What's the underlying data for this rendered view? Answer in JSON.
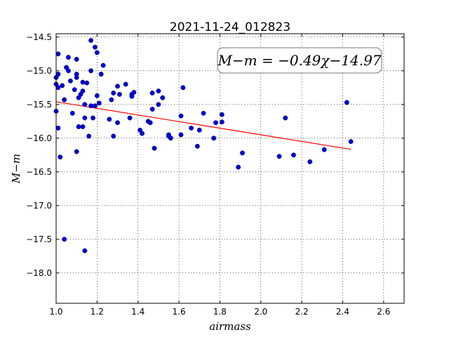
{
  "chart_data": {
    "type": "scatter",
    "title": "2021-11-24_012823",
    "xlabel": "airmass",
    "ylabel": "M−m",
    "xlim": [
      1.0,
      2.7
    ],
    "ylim": [
      -14.45,
      -18.45
    ],
    "y_inverted": true,
    "grid": true,
    "grid_style": "dotted",
    "x_ticks": [
      "1.0",
      "1.2",
      "1.4",
      "1.6",
      "1.8",
      "2.0",
      "2.2",
      "2.4",
      "2.6"
    ],
    "x_tick_values": [
      1.0,
      1.2,
      1.4,
      1.6,
      1.8,
      2.0,
      2.2,
      2.4,
      2.6
    ],
    "y_ticks": [
      "−14.5",
      "−15.0",
      "−15.5",
      "−16.0",
      "−16.5",
      "−17.0",
      "−17.5",
      "−18.0"
    ],
    "y_tick_values": [
      -14.5,
      -15.0,
      -15.5,
      -16.0,
      -16.5,
      -17.0,
      -17.5,
      -18.0
    ],
    "annotation": "M−m = −0.49χ−14.97",
    "point_color": "#0000cc",
    "fit_color": "#ff0000",
    "fit": {
      "slope": -0.49,
      "intercept": -14.97,
      "x_range": [
        1.0,
        2.44
      ]
    },
    "points": [
      [
        1.0,
        -15.1
      ],
      [
        1.0,
        -15.2
      ],
      [
        1.0,
        -15.6
      ],
      [
        1.01,
        -14.75
      ],
      [
        1.01,
        -15.05
      ],
      [
        1.01,
        -15.25
      ],
      [
        1.01,
        -15.85
      ],
      [
        1.02,
        -16.28
      ],
      [
        1.03,
        -15.22
      ],
      [
        1.04,
        -17.5
      ],
      [
        1.04,
        -15.43
      ],
      [
        1.05,
        -14.95
      ],
      [
        1.06,
        -14.8
      ],
      [
        1.06,
        -15.0
      ],
      [
        1.07,
        -15.15
      ],
      [
        1.08,
        -15.63
      ],
      [
        1.09,
        -15.28
      ],
      [
        1.1,
        -14.83
      ],
      [
        1.1,
        -15.05
      ],
      [
        1.1,
        -15.1
      ],
      [
        1.1,
        -16.2
      ],
      [
        1.11,
        -15.83
      ],
      [
        1.11,
        -15.4
      ],
      [
        1.12,
        -15.35
      ],
      [
        1.13,
        -15.17
      ],
      [
        1.13,
        -15.3
      ],
      [
        1.13,
        -15.83
      ],
      [
        1.14,
        -17.67
      ],
      [
        1.14,
        -15.5
      ],
      [
        1.14,
        -15.7
      ],
      [
        1.15,
        -15.18
      ],
      [
        1.16,
        -15.97
      ],
      [
        1.17,
        -15.52
      ],
      [
        1.17,
        -14.55
      ],
      [
        1.17,
        -15.0
      ],
      [
        1.18,
        -15.7
      ],
      [
        1.19,
        -15.52
      ],
      [
        1.19,
        -14.65
      ],
      [
        1.2,
        -14.73
      ],
      [
        1.2,
        -15.37
      ],
      [
        1.21,
        -15.48
      ],
      [
        1.22,
        -15.05
      ],
      [
        1.23,
        -14.92
      ],
      [
        1.26,
        -15.72
      ],
      [
        1.27,
        -15.43
      ],
      [
        1.28,
        -15.33
      ],
      [
        1.28,
        -15.97
      ],
      [
        1.3,
        -15.77
      ],
      [
        1.3,
        -15.23
      ],
      [
        1.31,
        -15.35
      ],
      [
        1.34,
        -15.2
      ],
      [
        1.36,
        -15.7
      ],
      [
        1.37,
        -15.35
      ],
      [
        1.37,
        -15.38
      ],
      [
        1.38,
        -15.32
      ],
      [
        1.41,
        -15.88
      ],
      [
        1.42,
        -15.93
      ],
      [
        1.45,
        -15.75
      ],
      [
        1.46,
        -15.77
      ],
      [
        1.47,
        -15.33
      ],
      [
        1.47,
        -15.57
      ],
      [
        1.48,
        -16.15
      ],
      [
        1.5,
        -15.5
      ],
      [
        1.5,
        -15.3
      ],
      [
        1.52,
        -15.4
      ],
      [
        1.55,
        -15.95
      ],
      [
        1.55,
        -15.97
      ],
      [
        1.56,
        -16.0
      ],
      [
        1.61,
        -15.67
      ],
      [
        1.61,
        -15.95
      ],
      [
        1.62,
        -15.25
      ],
      [
        1.66,
        -15.85
      ],
      [
        1.69,
        -16.12
      ],
      [
        1.7,
        -15.88
      ],
      [
        1.72,
        -15.63
      ],
      [
        1.77,
        -16.0
      ],
      [
        1.78,
        -15.77
      ],
      [
        1.81,
        -15.65
      ],
      [
        1.81,
        -15.76
      ],
      [
        1.89,
        -16.43
      ],
      [
        1.91,
        -16.22
      ],
      [
        2.09,
        -16.27
      ],
      [
        2.12,
        -15.7
      ],
      [
        2.16,
        -16.25
      ],
      [
        2.24,
        -16.35
      ],
      [
        2.31,
        -16.17
      ],
      [
        2.42,
        -15.47
      ],
      [
        2.44,
        -16.05
      ]
    ]
  }
}
